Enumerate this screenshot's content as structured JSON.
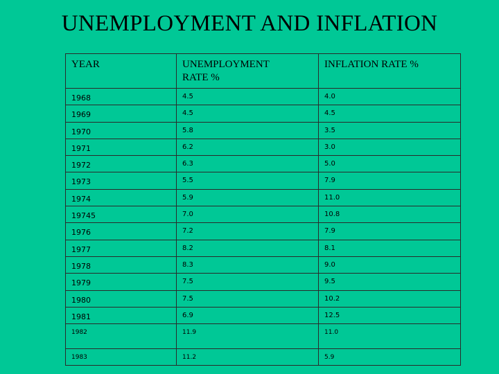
{
  "title": "UNEMPLOYMENT AND INFLATION",
  "table": {
    "headers": [
      "YEAR",
      "UNEMPLOYMENT\nRATE %",
      "INFLATION RATE %"
    ],
    "rows": [
      [
        "1968",
        "4.5",
        "4.0"
      ],
      [
        "1969",
        "4.5",
        "4.5"
      ],
      [
        "1970",
        "5.8",
        "3.5"
      ],
      [
        "1971",
        "6.2",
        "3.0"
      ],
      [
        "1972",
        "6.3",
        "5.0"
      ],
      [
        "1973",
        "5.5",
        "7.9"
      ],
      [
        "1974",
        "5.9",
        "11.0"
      ],
      [
        "19745",
        "7.0",
        "10.8"
      ],
      [
        "1976",
        "7.2",
        "7.9"
      ],
      [
        "1977",
        "8.2",
        "8.1"
      ],
      [
        "1978",
        "8.3",
        "9.0"
      ],
      [
        "1979",
        "7.5",
        "9.5"
      ],
      [
        "1980",
        "7.5",
        "10.2"
      ],
      [
        "1981",
        "6.9",
        "12.5"
      ],
      [
        "1982",
        "11.9",
        "11.0"
      ],
      [
        "1983",
        "11.2",
        "5.9"
      ]
    ]
  },
  "colors": {
    "background": "#00c896",
    "text": "#000000",
    "border": "#2a2a2a"
  }
}
